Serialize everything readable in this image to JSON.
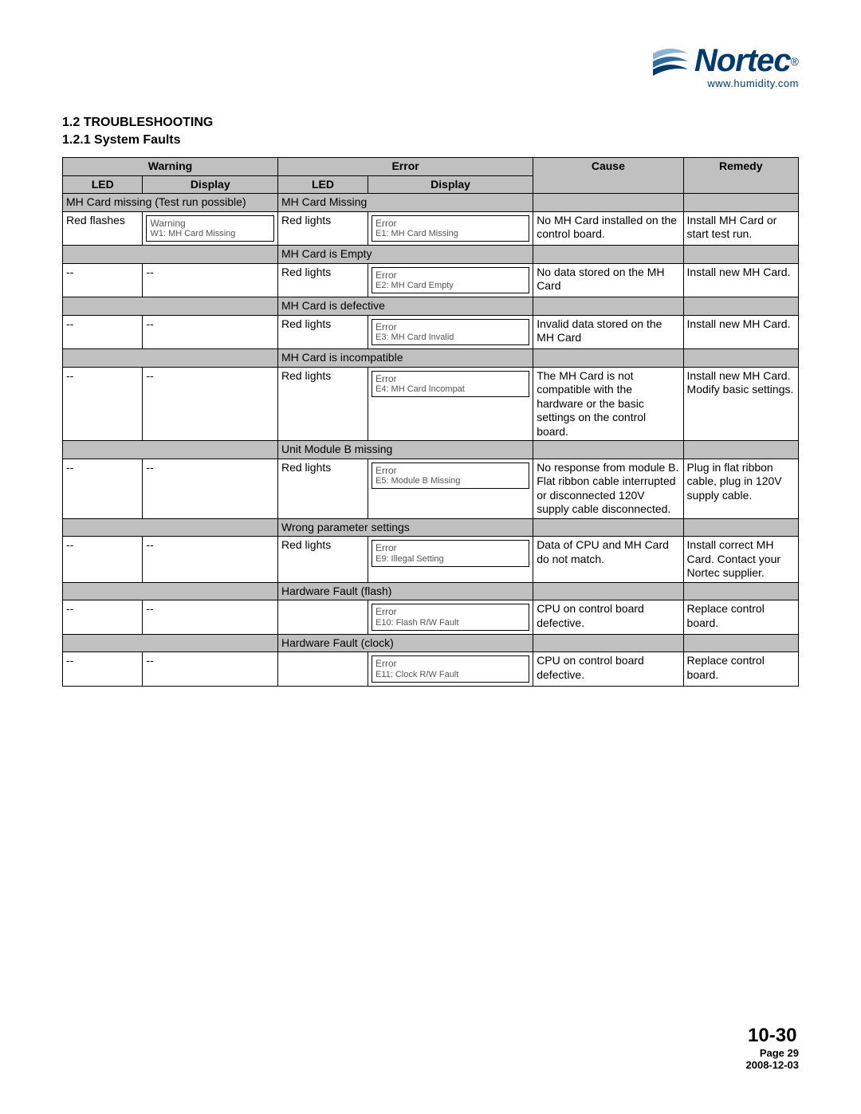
{
  "logo": {
    "brand": "Nortec",
    "url": "www.humidity.com",
    "swoosh_colors": [
      "#8db4d6",
      "#2f6aa0",
      "#003a6d"
    ]
  },
  "headings": {
    "h1": "1.2   TROUBLESHOOTING",
    "h2": "1.2.1   System Faults"
  },
  "table": {
    "headers": {
      "warning": "Warning",
      "error": "Error",
      "cause": "Cause",
      "remedy": "Remedy",
      "led": "LED",
      "display": "Display"
    },
    "groups": [
      {
        "warning_section": "MH Card missing  (Test run possible)",
        "error_section": "MH Card Missing",
        "row": {
          "w_led": "Red flashes",
          "w_disp_l1": "Warning",
          "w_disp_l2": "W1: MH Card Missing",
          "e_led": "Red lights",
          "e_disp_l1": "Error",
          "e_disp_l2": "E1: MH Card Missing",
          "cause": "No MH Card installed on the control board.",
          "remedy": "Install MH Card or start test run."
        }
      },
      {
        "warning_section": "",
        "error_section": "MH Card is Empty",
        "row": {
          "w_led": "--",
          "w_disp_plain": "--",
          "e_led": "Red lights",
          "e_disp_l1": "Error",
          "e_disp_l2": "E2: MH Card Empty",
          "cause": "No data stored on the MH Card",
          "remedy": "Install new MH Card."
        }
      },
      {
        "warning_section": "",
        "error_section": "MH Card is defective",
        "row": {
          "w_led": "--",
          "w_disp_plain": "--",
          "e_led": "Red lights",
          "e_disp_l1": "Error",
          "e_disp_l2": "E3: MH Card Invalid",
          "cause": "Invalid data stored on the MH Card",
          "remedy": "Install new MH Card."
        }
      },
      {
        "warning_section": "",
        "error_section": "MH Card is incompatible",
        "row": {
          "w_led": "--",
          "w_disp_plain": "--",
          "e_led": "Red lights",
          "e_disp_l1": "Error",
          "e_disp_l2": "E4: MH Card Incompat",
          "cause": "The MH Card is not compatible with the hardware or the basic settings on the control board.",
          "remedy": "Install new MH Card. Modify basic settings."
        }
      },
      {
        "warning_section": "",
        "error_section": "Unit Module B missing",
        "row": {
          "w_led": "--",
          "w_disp_plain": "--",
          "e_led": "Red lights",
          "e_disp_l1": "Error",
          "e_disp_l2": "E5: Module B Missing",
          "cause": "No response from module B.  Flat ribbon cable interrupted or disconnected 120V supply cable disconnected.",
          "remedy": "Plug in flat ribbon cable, plug in 120V supply cable."
        }
      },
      {
        "warning_section": "",
        "error_section": "Wrong parameter settings",
        "row": {
          "w_led": "--",
          "w_disp_plain": "--",
          "e_led": "Red lights",
          "e_disp_l1": "Error",
          "e_disp_l2": "E9: Illegal Setting",
          "cause": "Data of CPU and MH Card do not match.",
          "remedy": "Install correct MH Card. Contact your Nortec supplier."
        }
      },
      {
        "warning_section": "",
        "error_section": "Hardware Fault (flash)",
        "row": {
          "w_led": "--",
          "w_disp_plain": "--",
          "e_led": "",
          "e_disp_l1": "Error",
          "e_disp_l2": "E10: Flash R/W Fault",
          "cause": "CPU on control board defective.",
          "remedy": "Replace control board."
        }
      },
      {
        "warning_section": "",
        "error_section": "Hardware Fault (clock)",
        "row": {
          "w_led": "--",
          "w_disp_plain": "--",
          "e_led": "",
          "e_disp_l1": "Error",
          "e_disp_l2": "E11: Clock R/W Fault",
          "cause": "CPU on control board defective.",
          "remedy": "Replace control board."
        }
      }
    ]
  },
  "footer": {
    "big": "10-30",
    "page": "Page 29",
    "date": "2008-12-03"
  }
}
